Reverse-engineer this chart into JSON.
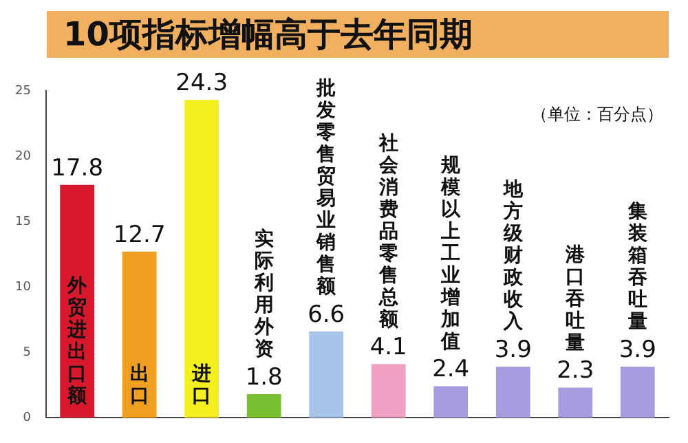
{
  "chart_data": {
    "type": "bar",
    "title": "10项指标增幅高于去年同期",
    "categories": [
      "外贸进出口额",
      "出口",
      "进口",
      "实际利用外资",
      "批发零售贸易业销售额",
      "社会消费品零售总额",
      "规模以上工业增加值",
      "地方级财政收入",
      "港口吞吐量",
      "集装箱吞吐量"
    ],
    "values": [
      17.8,
      12.7,
      24.3,
      1.8,
      6.6,
      4.1,
      2.4,
      3.9,
      2.3,
      3.9
    ],
    "colors": [
      "#d8182c",
      "#f0a020",
      "#f4f020",
      "#78c030",
      "#a8c4e8",
      "#f0a0c0",
      "#a89ce0",
      "#a89ce0",
      "#a89ce0",
      "#a89ce0"
    ],
    "ylim": [
      0,
      25
    ],
    "yticks": [
      0,
      5,
      10,
      15,
      20,
      25
    ],
    "grid": false,
    "legend": false,
    "data_labels": true,
    "annotations": [
      "（单位：百分点）"
    ]
  }
}
